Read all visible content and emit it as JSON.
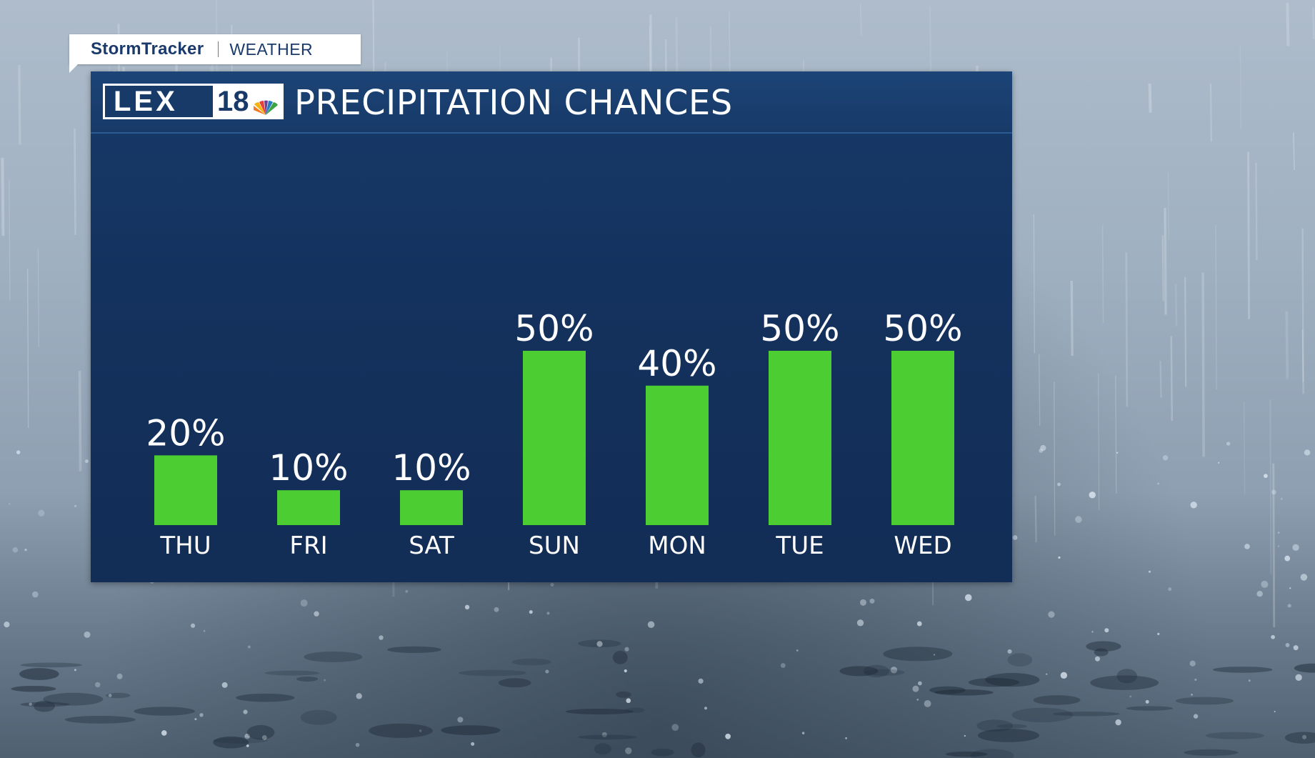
{
  "brand": {
    "name": "StormTracker",
    "section": "WEATHER"
  },
  "station": {
    "letters": "LEX",
    "number": "18"
  },
  "colors": {
    "panel": "#173a69",
    "bar": "#4ccd32",
    "text": "#ffffff",
    "brand_text": "#1a3a6b"
  },
  "chart_data": {
    "type": "bar",
    "title": "PRECIPITATION CHANCES",
    "categories": [
      "THU",
      "FRI",
      "SAT",
      "SUN",
      "MON",
      "TUE",
      "WED"
    ],
    "values": [
      20,
      10,
      10,
      50,
      40,
      50,
      50
    ],
    "value_labels": [
      "20%",
      "10%",
      "10%",
      "50%",
      "40%",
      "50%",
      "50%"
    ],
    "unit": "%",
    "ylim": [
      0,
      100
    ],
    "grid": false,
    "legend": "none",
    "xlabel": "",
    "ylabel": ""
  }
}
